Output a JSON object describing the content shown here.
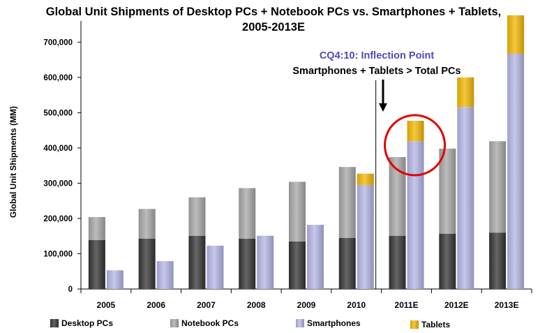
{
  "chart_data": {
    "type": "bar",
    "title_line1": "Global Unit Shipments of Desktop PCs + Notebook PCs vs. Smartphones + Tablets,",
    "title_line2": "2005-2013E",
    "ylabel": "Global Unit Shipments (MM)",
    "xlabel": "",
    "ylim": [
      0,
      760000
    ],
    "yticks": [
      0,
      100000,
      200000,
      300000,
      400000,
      500000,
      600000,
      700000
    ],
    "ytick_labels": [
      "0",
      "100,000",
      "200,000",
      "300,000",
      "400,000",
      "500,000",
      "600,000",
      "700,000"
    ],
    "categories": [
      "2005",
      "2006",
      "2007",
      "2008",
      "2009",
      "2010",
      "2011E",
      "2012E",
      "2013E"
    ],
    "stacks": [
      {
        "name": "PCs",
        "series": [
          {
            "name": "Desktop PCs",
            "color": "#333333",
            "values": [
              139000,
              143000,
              151000,
              143000,
              135000,
              145000,
              151000,
              157000,
              160000
            ]
          },
          {
            "name": "Notebook PCs",
            "color": "#a6a6a6",
            "values": [
              65000,
              84000,
              109000,
              143000,
              169000,
              201000,
              223000,
              241000,
              259000
            ]
          }
        ]
      },
      {
        "name": "Smartphones + Tablets",
        "series": [
          {
            "name": "Smartphones",
            "color": "#b4b4e6",
            "values": [
              53000,
              79000,
              123000,
              151000,
              182000,
              295000,
              419000,
              516000,
              667000
            ]
          },
          {
            "name": "Tablets",
            "color": "#f2b600",
            "values": [
              0,
              0,
              0,
              0,
              0,
              32000,
              58000,
              84000,
              109000
            ]
          }
        ]
      }
    ],
    "legend_position": "bottom",
    "grid": false,
    "annotations": {
      "inflection_title": "CQ4:10: Inflection Point",
      "inflection_subtitle": "Smartphones + Tablets > Total PCs",
      "inflection_title_color": "#4b4bbf",
      "circle_color": "#e00000",
      "circle_category": "2011E"
    }
  }
}
